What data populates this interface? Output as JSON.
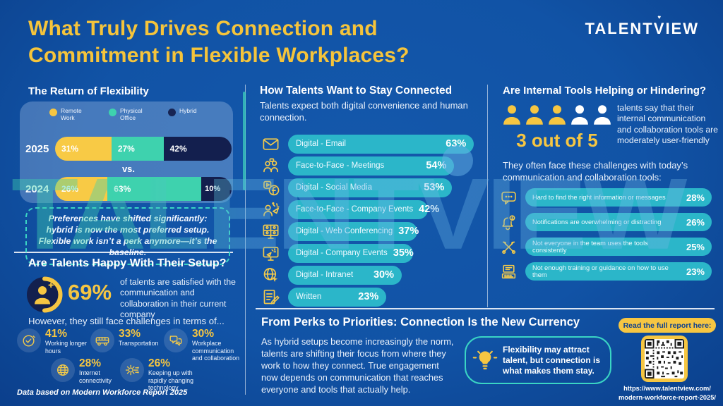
{
  "header": {
    "title": "What Truly Drives Connection and Commitment in Flexible Workplaces?",
    "logo": {
      "part1": "TALENT",
      "part2": "V",
      "part3": "IEW"
    }
  },
  "watermark": "TALENTVIEW",
  "colors": {
    "background": "#1153A6",
    "accent_yellow": "#F6C642",
    "teal_bar": "#2BB6C9",
    "green_segment": "#3ED2AE",
    "navy_segment": "#131F4E",
    "teal_border": "#3AD5C4",
    "panel": "#4C77B4",
    "title_yellow": "#F5C43B"
  },
  "flexibility": {
    "heading": "The Return of Flexibility",
    "legend": [
      {
        "label": "Remote Work",
        "color": "#F6C642"
      },
      {
        "label": "Physical Office",
        "color": "#3ED2AE"
      },
      {
        "label": "Hybrid",
        "color": "#172453"
      }
    ],
    "vs_label": "vs.",
    "rows": [
      {
        "year": "2025",
        "segments": [
          {
            "name": "Remote Work",
            "pct": 31,
            "pct_label": "31%"
          },
          {
            "name": "Physical Office",
            "pct": 27,
            "pct_label": "27%"
          },
          {
            "name": "Hybrid",
            "pct": 42,
            "pct_label": "42%"
          }
        ]
      },
      {
        "year": "2024",
        "segments": [
          {
            "name": "Remote Work",
            "pct": 26,
            "pct_label": "26%"
          },
          {
            "name": "Physical Office",
            "pct": 63,
            "pct_label": "63%"
          },
          {
            "name": "Hybrid",
            "pct": 10,
            "pct_label": "10%"
          }
        ]
      }
    ],
    "note": "Preferences have shifted significantly: hybrid is now the most preferred setup. Flexible work isn’t a perk anymore—it’s the baseline."
  },
  "happy": {
    "heading": "Are Talents Happy With Their Setup?",
    "stat": "69%",
    "stat_icon": "person-donut-icon",
    "stat_text": "of talents are satisfied with the communication and collaboration in their current company",
    "however": "However, they still face challenges in terms of...",
    "challenges": [
      {
        "pct_label": "41%",
        "label": "Working longer hours",
        "icon": "clock-icon"
      },
      {
        "pct_label": "33%",
        "label": "Transportation",
        "icon": "van-icon"
      },
      {
        "pct_label": "30%",
        "label": "Workplace communication and collaboration",
        "icon": "chat-icon"
      },
      {
        "pct_label": "28%",
        "label": "Internet connectivity",
        "icon": "globe-icon"
      },
      {
        "pct_label": "26%",
        "label": "Keeping up with rapidly changing technology",
        "icon": "gear-icon"
      }
    ],
    "footnote": "Data based on Modern Workforce Report 2025"
  },
  "connected": {
    "heading": "How Talents Want to Stay Connected",
    "subheading": "Talents expect both digital convenience and human connection.",
    "bars": [
      {
        "label": "Digital - Email",
        "pct": 63,
        "pct_label": "63%",
        "icon": "email-icon"
      },
      {
        "label": "Face-to-Face - Meetings",
        "pct": 54,
        "pct_label": "54%",
        "icon": "people-icon"
      },
      {
        "label": "Digital - Social Media",
        "pct": 53,
        "pct_label": "53%",
        "icon": "social-media-icon"
      },
      {
        "label": "Face-to-Face - Company Events",
        "pct": 42,
        "pct_label": "42%",
        "icon": "party-people-icon"
      },
      {
        "label": "Digital - Web Conferencing",
        "pct": 37,
        "pct_label": "37%",
        "icon": "video-call-icon"
      },
      {
        "label": "Digital - Company Events",
        "pct": 35,
        "pct_label": "35%",
        "icon": "screen-party-icon"
      },
      {
        "label": "Digital - Intranet",
        "pct": 30,
        "pct_label": "30%",
        "icon": "intranet-icon"
      },
      {
        "label": "Written",
        "pct": 23,
        "pct_label": "23%",
        "icon": "written-icon"
      }
    ]
  },
  "tools": {
    "heading": "Are Internal Tools Helping or Hindering?",
    "stat": "3 out of 5",
    "stat_filled": 3,
    "stat_total": 5,
    "stat_text": "talents say that their internal communication and collaboration tools are moderately user-friendly",
    "intro": "They often face these challenges with today’s communication and collaboration tools:",
    "challenges": [
      {
        "label": "Hard to find the right information or messages",
        "pct_label": "28%",
        "icon": "message-icon"
      },
      {
        "label": "Notifications are overwhelming or distracting",
        "pct_label": "26%",
        "icon": "bell-icon"
      },
      {
        "label": "Not everyone in the team uses the tools consistently",
        "pct_label": "25%",
        "icon": "tools-icon"
      },
      {
        "label": "Not enough training or guidance on how to use them",
        "pct_label": "23%",
        "icon": "training-icon"
      }
    ]
  },
  "priorities": {
    "heading": "From Perks to Priorities: Connection Is the New Currency",
    "body": "As hybrid setups become increasingly the norm, talents are shifting their focus from where they work to how they connect. True engagement now depends on communication that reaches everyone and tools that actually help.",
    "callout": "Flexibility may attract talent, but connection is what makes them stay.",
    "callout_icon": "lightbulb-icon"
  },
  "report": {
    "cta": "Read the full report here:",
    "qr_icon": "qr-code",
    "url_line1": "https://www.talentview.com/",
    "url_line2": "modern-workforce-report-2025/"
  },
  "chart_data": [
    {
      "type": "bar",
      "stacked": true,
      "orientation": "horizontal",
      "title": "The Return of Flexibility",
      "unit": "%",
      "legend_position": "top",
      "categories": [
        "2025",
        "2024"
      ],
      "series": [
        {
          "name": "Remote Work",
          "values": [
            31,
            26
          ]
        },
        {
          "name": "Physical Office",
          "values": [
            27,
            63
          ]
        },
        {
          "name": "Hybrid",
          "values": [
            42,
            10
          ]
        }
      ]
    },
    {
      "type": "bar",
      "orientation": "horizontal",
      "title": "How Talents Want to Stay Connected",
      "unit": "%",
      "categories": [
        "Digital - Email",
        "Face-to-Face - Meetings",
        "Digital - Social Media",
        "Face-to-Face - Company Events",
        "Digital - Web Conferencing",
        "Digital - Company Events",
        "Digital - Intranet",
        "Written"
      ],
      "values": [
        63,
        54,
        53,
        42,
        37,
        35,
        30,
        23
      ]
    },
    {
      "type": "bar",
      "orientation": "horizontal",
      "title": "Challenges with today's communication and collaboration tools",
      "unit": "%",
      "categories": [
        "Hard to find the right information or messages",
        "Notifications are overwhelming or distracting",
        "Not everyone in the team uses the tools consistently",
        "Not enough training or guidance on how to use them"
      ],
      "values": [
        28,
        26,
        25,
        23
      ]
    },
    {
      "type": "bar",
      "orientation": "horizontal",
      "title": "Challenges talents still face",
      "unit": "%",
      "categories": [
        "Working longer hours",
        "Transportation",
        "Workplace communication and collaboration",
        "Internet connectivity",
        "Keeping up with rapidly changing technology"
      ],
      "values": [
        41,
        33,
        30,
        28,
        26
      ]
    },
    {
      "type": "pictogram",
      "title": "Talents saying internal tools are moderately user-friendly",
      "label": "3 out of 5",
      "value": 3,
      "total": 5
    }
  ]
}
